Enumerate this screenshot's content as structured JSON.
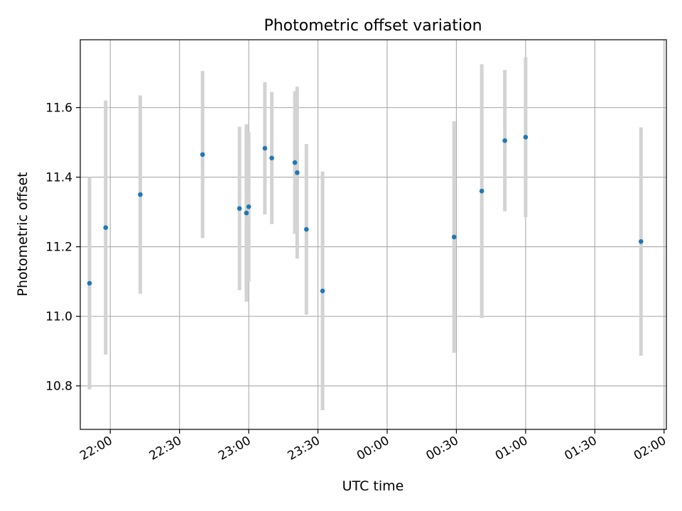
{
  "chart_data": {
    "type": "scatter",
    "title": "Photometric offset variation",
    "xlabel": "UTC time",
    "ylabel": "Photometric offset",
    "grid": true,
    "x_ticks": [
      "22:00",
      "22:30",
      "23:00",
      "23:30",
      "00:00",
      "00:30",
      "01:00",
      "01:30",
      "02:00"
    ],
    "y_ticks": [
      "10.8",
      "11.0",
      "11.2",
      "11.4",
      "11.6"
    ],
    "xlim": [
      "21:47",
      "02:01"
    ],
    "ylim": [
      10.675,
      11.795
    ],
    "point_color": "#1f77b4",
    "errorbar_color": "#d3d3d3",
    "series": [
      {
        "x": [
          "21:51",
          "21:58",
          "22:13",
          "22:40",
          "22:56",
          "22:59",
          "23:00",
          "23:07",
          "23:10",
          "23:20",
          "23:21",
          "23:25",
          "23:32",
          "00:29",
          "00:41",
          "00:51",
          "01:00",
          "01:50"
        ],
        "y": [
          11.095,
          11.255,
          11.35,
          11.465,
          11.31,
          11.297,
          11.315,
          11.483,
          11.455,
          11.442,
          11.413,
          11.25,
          11.073,
          11.228,
          11.36,
          11.505,
          11.515,
          11.215
        ],
        "yerr": [
          0.305,
          0.365,
          0.285,
          0.24,
          0.235,
          0.255,
          0.215,
          0.19,
          0.19,
          0.205,
          0.247,
          0.245,
          0.343,
          0.333,
          0.365,
          0.203,
          0.23,
          0.328
        ]
      }
    ]
  }
}
